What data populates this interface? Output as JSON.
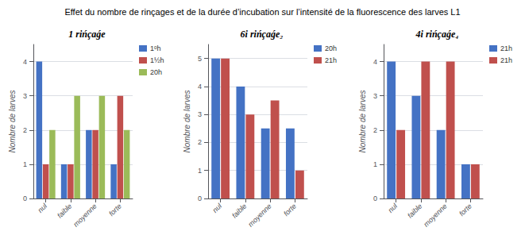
{
  "title": "Effet du nombre de rinçages et de la durée d’incubation sur l’intensité de la fluorescence des larves L1",
  "chart_data": [
    {
      "type": "bar",
      "title": "1 rińçaǵe",
      "ylabel": "Nombre de larves",
      "categories": [
        "nul",
        "faible",
        "moyenne",
        "forte"
      ],
      "series": [
        {
          "name": "1ᵒh",
          "color": "#4472C4",
          "values": [
            4,
            1,
            2,
            1
          ]
        },
        {
          "name": "1½h",
          "color": "#C0504D",
          "values": [
            1,
            1,
            2,
            3
          ]
        },
        {
          "name": "20h",
          "color": "#9BBB59",
          "values": [
            2,
            3,
            3,
            2
          ]
        }
      ],
      "ylim": [
        0,
        4.5
      ],
      "yticks": [
        0,
        1,
        2,
        3,
        4
      ],
      "grid": true,
      "legend": "right"
    },
    {
      "type": "bar",
      "title": "6i rińçaǵe₂",
      "ylabel": "Nombre de larves",
      "categories": [
        "nul",
        "faible",
        "moyenne",
        "forte"
      ],
      "series": [
        {
          "name": "20h",
          "color": "#4472C4",
          "values": [
            5,
            4,
            2.5,
            2.5
          ]
        },
        {
          "name": "21h",
          "color": "#C0504D",
          "values": [
            5,
            3,
            3.5,
            1
          ]
        }
      ],
      "ylim": [
        0,
        5.5
      ],
      "yticks": [
        0,
        1,
        2,
        3,
        4,
        5
      ],
      "grid": true,
      "legend": "right"
    },
    {
      "type": "bar",
      "title": "4i rińçaǵe₄",
      "ylabel": "Nombre de larves",
      "categories": [
        "nul",
        "faible",
        "moyenne",
        "forte"
      ],
      "series": [
        {
          "name": "21h",
          "color": "#4472C4",
          "values": [
            4,
            3,
            2,
            1
          ]
        },
        {
          "name": "21h",
          "color": "#C0504D",
          "values": [
            2,
            4,
            4,
            1
          ]
        }
      ],
      "ylim": [
        0,
        4.5
      ],
      "yticks": [
        0,
        1,
        2,
        3,
        4
      ],
      "grid": true,
      "legend": "right"
    }
  ]
}
